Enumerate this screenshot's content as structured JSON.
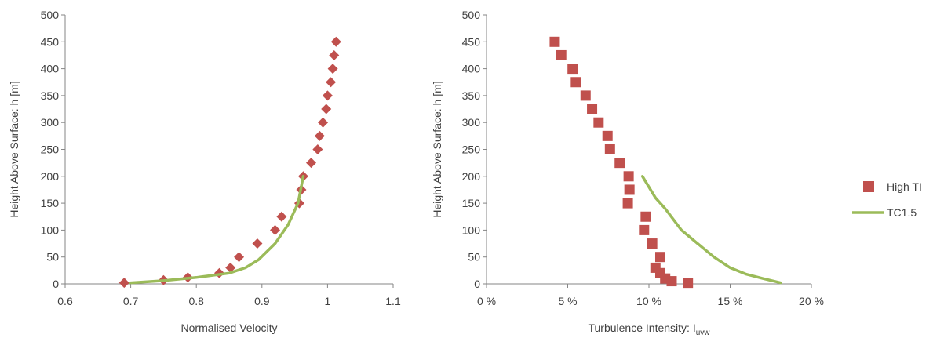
{
  "colors": {
    "marker": "#C0504D",
    "line": "#9BBB59",
    "axis": "#868686",
    "text": "#404040"
  },
  "legend": {
    "placement": "right",
    "items": [
      {
        "label": "High TI",
        "symbol": "square",
        "color": "#C0504D"
      },
      {
        "label": "TC1.5",
        "symbol": "line",
        "color": "#9BBB59"
      }
    ]
  },
  "chart_data": [
    {
      "type": "scatter",
      "xlabel": "Normalised Velocity",
      "ylabel": "Height Above Surface: h [m]",
      "xlim": [
        0.6,
        1.1
      ],
      "ylim": [
        0,
        500
      ],
      "xticks": [
        0.6,
        0.7,
        0.8,
        0.9,
        1.0,
        1.1
      ],
      "xtick_labels": [
        "0.6",
        "0.7",
        "0.8",
        "0.9",
        "1",
        "1.1"
      ],
      "yticks": [
        0,
        50,
        100,
        150,
        200,
        250,
        300,
        350,
        400,
        450,
        500
      ],
      "ytick_labels": [
        "0",
        "50",
        "100",
        "150",
        "200",
        "250",
        "300",
        "350",
        "400",
        "450",
        "500"
      ],
      "grid": false,
      "series": [
        {
          "marker": "diamond",
          "color": "#C0504D",
          "x": [
            0.69,
            0.75,
            0.787,
            0.835,
            0.852,
            0.865,
            0.893,
            0.92,
            0.93,
            0.957,
            0.96,
            0.963,
            0.975,
            0.985,
            0.988,
            0.993,
            0.998,
            1.0,
            1.005,
            1.008,
            1.01,
            1.013
          ],
          "y": [
            2,
            7,
            12,
            20,
            30,
            50,
            75,
            100,
            125,
            150,
            175,
            200,
            225,
            250,
            275,
            300,
            325,
            350,
            375,
            400,
            425,
            450
          ]
        },
        {
          "mode": "line",
          "color": "#9BBB59",
          "x": [
            0.7,
            0.75,
            0.8,
            0.85,
            0.875,
            0.895,
            0.92,
            0.94,
            0.955,
            0.963
          ],
          "y": [
            2,
            6,
            12,
            20,
            30,
            45,
            75,
            110,
            150,
            200
          ]
        }
      ]
    },
    {
      "type": "scatter",
      "xlabel": "Turbulence  Intensity: I",
      "xlabel_sub": "uvw",
      "ylabel": "Height Above Surface: h [m]",
      "xlim": [
        0,
        20
      ],
      "ylim": [
        0,
        500
      ],
      "xticks": [
        0,
        5,
        10,
        15,
        20
      ],
      "xtick_labels": [
        "0 %",
        "5 %",
        "10 %",
        "15 %",
        "20 %"
      ],
      "yticks": [
        0,
        50,
        100,
        150,
        200,
        250,
        300,
        350,
        400,
        450,
        500
      ],
      "ytick_labels": [
        "0",
        "50",
        "100",
        "150",
        "200",
        "250",
        "300",
        "350",
        "400",
        "450",
        "500"
      ],
      "grid": false,
      "series": [
        {
          "name": "High TI",
          "marker": "square",
          "color": "#C0504D",
          "x": [
            12.4,
            11.4,
            11.0,
            10.7,
            10.4,
            10.7,
            10.2,
            9.7,
            9.8,
            8.7,
            8.8,
            8.75,
            8.2,
            7.6,
            7.45,
            6.9,
            6.5,
            6.1,
            5.5,
            5.3,
            4.6,
            4.2
          ],
          "y": [
            2,
            5,
            10,
            20,
            30,
            50,
            75,
            100,
            125,
            150,
            175,
            200,
            225,
            250,
            275,
            300,
            325,
            350,
            375,
            400,
            425,
            450
          ]
        },
        {
          "name": "TC1.5",
          "mode": "line",
          "color": "#9BBB59",
          "x": [
            18.1,
            17.0,
            16.0,
            15.0,
            14.0,
            13.0,
            12.0,
            11.0,
            10.4,
            9.6
          ],
          "y": [
            2,
            10,
            18,
            30,
            50,
            75,
            100,
            140,
            160,
            200
          ]
        }
      ]
    }
  ]
}
